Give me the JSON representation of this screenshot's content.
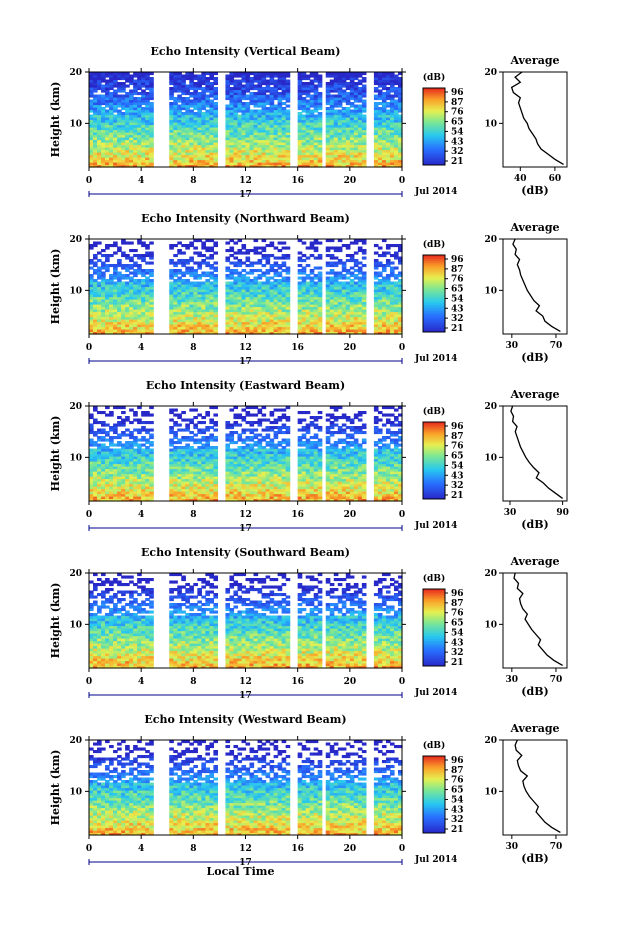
{
  "chart_data": [
    {
      "type": "heatmap",
      "title": "Echo Intensity (Vertical Beam)",
      "ylabel": "Height (km)",
      "ylim": [
        1.5,
        20
      ],
      "yticks": [
        "20",
        "10"
      ],
      "xlim": [
        0,
        24
      ],
      "xticks": [
        "0",
        "4",
        "8",
        "12",
        "16",
        "20",
        "0"
      ],
      "date_marker": "17",
      "date_label": "Jul 2014",
      "colorbar": {
        "title": "(dB)",
        "ticks": [
          "96",
          "87",
          "76",
          "65",
          "54",
          "43",
          "32",
          "21"
        ]
      },
      "gaps_hours": [
        [
          5.0,
          6.0
        ],
        [
          10.0,
          10.6
        ],
        [
          15.4,
          15.9
        ],
        [
          17.7,
          18.2
        ],
        [
          21.3,
          21.8
        ]
      ],
      "average_profile": {
        "title": "Average",
        "xlabel": "(dB)",
        "xticks": [
          "40",
          "60"
        ],
        "xlim": [
          30,
          67
        ],
        "height": [
          2,
          3,
          4,
          5,
          6,
          7,
          8,
          9,
          10,
          11,
          12,
          13,
          14,
          15,
          16,
          17,
          18,
          19,
          20
        ],
        "value": [
          65,
          60,
          56,
          52,
          50,
          49,
          47,
          45,
          44,
          42,
          41,
          40,
          39,
          40,
          36,
          35,
          40,
          37,
          41
        ]
      }
    },
    {
      "type": "heatmap",
      "title": "Echo Intensity (Northward Beam)",
      "ylabel": "Height (km)",
      "ylim": [
        1.5,
        20
      ],
      "yticks": [
        "20",
        "10"
      ],
      "xlim": [
        0,
        24
      ],
      "xticks": [
        "0",
        "4",
        "8",
        "12",
        "16",
        "20",
        "0"
      ],
      "date_marker": "17",
      "date_label": "Jul 2014",
      "colorbar": {
        "title": "(dB)",
        "ticks": [
          "96",
          "87",
          "76",
          "65",
          "54",
          "43",
          "32",
          "21"
        ]
      },
      "gaps_hours": [
        [
          5.0,
          6.0
        ],
        [
          10.0,
          10.6
        ],
        [
          15.4,
          15.9
        ],
        [
          17.7,
          18.2
        ],
        [
          21.3,
          21.8
        ]
      ],
      "average_profile": {
        "title": "Average",
        "xlabel": "(dB)",
        "xticks": [
          "30",
          "70"
        ],
        "xlim": [
          22,
          80
        ],
        "height": [
          2,
          3,
          4,
          5,
          6,
          7,
          8,
          9,
          10,
          11,
          12,
          13,
          14,
          15,
          16,
          17,
          18,
          19,
          20
        ],
        "value": [
          74,
          66,
          60,
          58,
          52,
          55,
          50,
          47,
          44,
          42,
          40,
          38,
          37,
          35,
          37,
          33,
          34,
          31,
          33
        ]
      }
    },
    {
      "type": "heatmap",
      "title": "Echo Intensity (Eastward Beam)",
      "ylabel": "Height (km)",
      "ylim": [
        1.5,
        20
      ],
      "yticks": [
        "20",
        "10"
      ],
      "xlim": [
        0,
        24
      ],
      "xticks": [
        "0",
        "4",
        "8",
        "12",
        "16",
        "20",
        "0"
      ],
      "date_marker": "17",
      "date_label": "Jul 2014",
      "colorbar": {
        "title": "(dB)",
        "ticks": [
          "96",
          "87",
          "76",
          "65",
          "54",
          "43",
          "32",
          "21"
        ]
      },
      "gaps_hours": [
        [
          5.0,
          6.0
        ],
        [
          10.0,
          10.6
        ],
        [
          15.4,
          15.9
        ],
        [
          17.7,
          18.2
        ],
        [
          21.3,
          21.8
        ]
      ],
      "average_profile": {
        "title": "Average",
        "xlabel": "(dB)",
        "xticks": [
          "30",
          "90"
        ],
        "xlim": [
          22,
          95
        ],
        "height": [
          2,
          3,
          4,
          5,
          6,
          7,
          8,
          9,
          10,
          11,
          12,
          13,
          14,
          15,
          16,
          17,
          18,
          19,
          20
        ],
        "value": [
          90,
          82,
          74,
          68,
          60,
          63,
          57,
          52,
          48,
          45,
          42,
          40,
          38,
          36,
          38,
          33,
          34,
          31,
          33
        ]
      }
    },
    {
      "type": "heatmap",
      "title": "Echo Intensity (Southward Beam)",
      "ylabel": "Height (km)",
      "ylim": [
        1.5,
        20
      ],
      "yticks": [
        "20",
        "10"
      ],
      "xlim": [
        0,
        24
      ],
      "xticks": [
        "0",
        "4",
        "8",
        "12",
        "16",
        "20",
        "0"
      ],
      "date_marker": "17",
      "date_label": "Jul 2014",
      "colorbar": {
        "title": "(dB)",
        "ticks": [
          "96",
          "87",
          "76",
          "65",
          "54",
          "43",
          "32",
          "21"
        ]
      },
      "gaps_hours": [
        [
          5.0,
          6.0
        ],
        [
          10.0,
          10.6
        ],
        [
          15.4,
          15.9
        ],
        [
          17.7,
          18.2
        ],
        [
          21.3,
          21.8
        ]
      ],
      "average_profile": {
        "title": "Average",
        "xlabel": "(dB)",
        "xticks": [
          "30",
          "70"
        ],
        "xlim": [
          22,
          80
        ],
        "height": [
          2,
          3,
          4,
          5,
          6,
          7,
          8,
          9,
          10,
          11,
          12,
          13,
          14,
          15,
          16,
          17,
          18,
          19,
          20
        ],
        "value": [
          76,
          68,
          62,
          58,
          54,
          56,
          52,
          48,
          45,
          42,
          44,
          40,
          38,
          37,
          40,
          35,
          36,
          32,
          33
        ]
      }
    },
    {
      "type": "heatmap",
      "title": "Echo Intensity (Westward Beam)",
      "ylabel": "Height (km)",
      "ylim": [
        1.5,
        20
      ],
      "yticks": [
        "20",
        "10"
      ],
      "xlim": [
        0,
        24
      ],
      "xticks": [
        "0",
        "4",
        "8",
        "12",
        "16",
        "20",
        "0"
      ],
      "date_marker": "17",
      "date_label": "Jul 2014",
      "xlabel": "Local Time",
      "colorbar": {
        "title": "(dB)",
        "ticks": [
          "96",
          "87",
          "76",
          "65",
          "54",
          "43",
          "32",
          "21"
        ]
      },
      "gaps_hours": [
        [
          5.0,
          6.0
        ],
        [
          10.0,
          10.6
        ],
        [
          15.4,
          15.9
        ],
        [
          17.7,
          18.2
        ],
        [
          21.3,
          21.8
        ]
      ],
      "average_profile": {
        "title": "Average",
        "xlabel": "(dB)",
        "xticks": [
          "30",
          "70"
        ],
        "xlim": [
          22,
          80
        ],
        "height": [
          2,
          3,
          4,
          5,
          6,
          7,
          8,
          9,
          10,
          11,
          12,
          13,
          14,
          15,
          16,
          17,
          18,
          19,
          20
        ],
        "value": [
          74,
          66,
          60,
          56,
          52,
          54,
          50,
          46,
          43,
          41,
          40,
          44,
          38,
          36,
          35,
          39,
          34,
          33,
          35
        ]
      }
    }
  ]
}
